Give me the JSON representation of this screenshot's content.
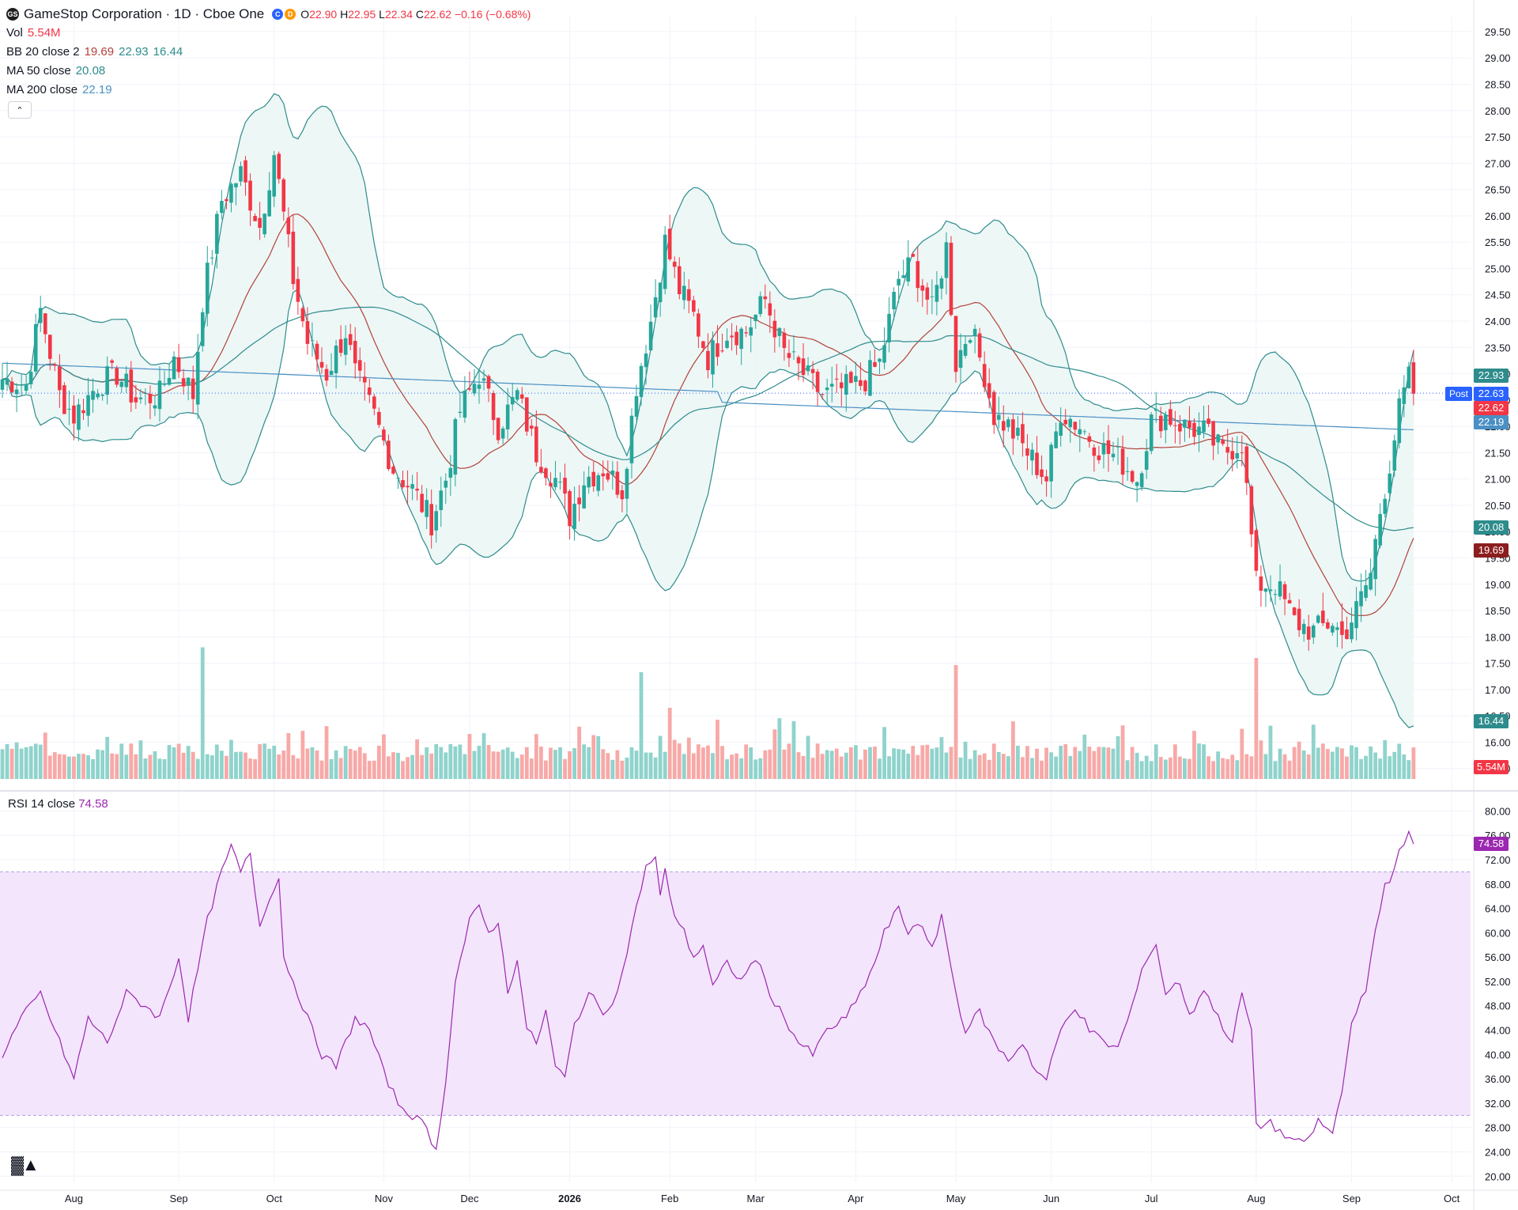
{
  "header": {
    "symbol_logo": "GS",
    "title": "GameStop Corporation · 1D · Cboe One",
    "badges": [
      "C",
      "D"
    ],
    "o_label": "O",
    "o": "22.90",
    "h_label": "H",
    "h": "22.95",
    "l_label": "L",
    "l": "22.34",
    "c_label": "C",
    "c": "22.62",
    "change": "−0.16 (−0.68%)"
  },
  "indicators": {
    "vol_label": "Vol",
    "vol_value": "5.54M",
    "bb_label": "BB 20 close 2",
    "bb_mid": "19.69",
    "bb_upper": "22.93",
    "bb_lower": "16.44",
    "ma50_label": "MA 50 close",
    "ma50_value": "20.08",
    "ma200_label": "MA 200 close",
    "ma200_value": "22.19",
    "collapse_icon": "chevron-up-icon"
  },
  "rsi": {
    "label": "RSI 14 close",
    "value": "74.58"
  },
  "price_axis_labels": [
    "29.50",
    "29.00",
    "28.50",
    "28.00",
    "27.50",
    "27.00",
    "26.50",
    "26.00",
    "25.50",
    "25.00",
    "24.50",
    "24.00",
    "23.50",
    "23.00",
    "22.50",
    "22.00",
    "21.50",
    "21.00",
    "20.50",
    "20.00",
    "19.50",
    "19.00",
    "18.50",
    "18.00",
    "17.50",
    "17.00",
    "16.50",
    "16.00",
    "15.50"
  ],
  "rsi_axis_labels": [
    "80.00",
    "76.00",
    "72.00",
    "68.00",
    "64.00",
    "60.00",
    "56.00",
    "52.00",
    "48.00",
    "44.00",
    "40.00",
    "36.00",
    "32.00",
    "28.00",
    "24.00",
    "20.00"
  ],
  "time_axis_labels": [
    "Aug",
    "Sep",
    "Oct",
    "Nov",
    "Dec",
    "2026",
    "Feb",
    "Mar",
    "Apr",
    "May",
    "Jun",
    "Jul",
    "Aug",
    "Sep",
    "Oct"
  ],
  "axis_tags": {
    "bb_upper": "22.93",
    "last_price": "22.63",
    "close": "22.62",
    "ma200": "22.19",
    "ma50": "20.08",
    "bb_mid": "19.69",
    "bb_lower": "16.44",
    "volume": "5.54M",
    "rsi": "74.58",
    "post_label": "Post"
  },
  "colors": {
    "up": "#26a69a",
    "down": "#f23645",
    "bb_band": "#2e8c8c",
    "bb_fill": "#e8f5f4",
    "bb_mid": "#b2423a",
    "ma50": "#2e8c8c",
    "ma200": "#4a90c4",
    "rsi_line": "#9c27b0",
    "rsi_band": "#f3e5fc",
    "vol_up": "#8fd3cc",
    "vol_down": "#f7a9a7",
    "last_price_line": "#2962ff"
  },
  "chart_data": {
    "type": "candlestick",
    "title": "GameStop Corporation · 1D · Cboe One",
    "y_range": [
      15.3,
      29.8
    ],
    "rsi_range": [
      19,
      82
    ],
    "rsi_band": [
      30,
      70
    ],
    "last_close": 22.62,
    "months": [
      {
        "label": "Aug",
        "day": 15
      },
      {
        "label": "Sep",
        "day": 37
      },
      {
        "label": "Oct",
        "day": 57
      },
      {
        "label": "Nov",
        "day": 80
      },
      {
        "label": "Dec",
        "day": 98
      },
      {
        "label": "2026",
        "day": 119
      },
      {
        "label": "Feb",
        "day": 140
      },
      {
        "label": "Mar",
        "day": 158
      },
      {
        "label": "Apr",
        "day": 179
      },
      {
        "label": "May",
        "day": 200
      },
      {
        "label": "Jun",
        "day": 220
      },
      {
        "label": "Jul",
        "day": 241
      },
      {
        "label": "Aug",
        "day": 263
      },
      {
        "label": "Sep",
        "day": 283
      },
      {
        "label": "Oct",
        "day": 304
      }
    ],
    "close_anchors": [
      [
        0,
        22.9
      ],
      [
        5,
        22.8
      ],
      [
        8,
        24.2
      ],
      [
        12,
        22.6
      ],
      [
        15,
        22.2
      ],
      [
        20,
        22.8
      ],
      [
        24,
        23.0
      ],
      [
        28,
        22.5
      ],
      [
        33,
        22.6
      ],
      [
        36,
        23.3
      ],
      [
        40,
        22.6
      ],
      [
        42,
        24.4
      ],
      [
        46,
        26.3
      ],
      [
        50,
        26.8
      ],
      [
        54,
        25.8
      ],
      [
        57,
        27.2
      ],
      [
        59,
        26.0
      ],
      [
        61,
        24.8
      ],
      [
        64,
        23.6
      ],
      [
        68,
        23.0
      ],
      [
        72,
        23.8
      ],
      [
        74,
        23.0
      ],
      [
        78,
        22.2
      ],
      [
        82,
        21.2
      ],
      [
        86,
        20.8
      ],
      [
        90,
        20.2
      ],
      [
        93,
        21.0
      ],
      [
        96,
        22.3
      ],
      [
        100,
        23.0
      ],
      [
        104,
        22.0
      ],
      [
        108,
        22.6
      ],
      [
        112,
        21.5
      ],
      [
        116,
        21.0
      ],
      [
        119,
        20.3
      ],
      [
        122,
        21.0
      ],
      [
        126,
        21.2
      ],
      [
        130,
        20.8
      ],
      [
        133,
        22.8
      ],
      [
        136,
        24.0
      ],
      [
        139,
        25.5
      ],
      [
        142,
        24.6
      ],
      [
        145,
        24.1
      ],
      [
        148,
        23.3
      ],
      [
        152,
        23.8
      ],
      [
        156,
        23.8
      ],
      [
        160,
        24.4
      ],
      [
        164,
        23.4
      ],
      [
        168,
        23.0
      ],
      [
        172,
        22.6
      ],
      [
        176,
        22.7
      ],
      [
        180,
        22.8
      ],
      [
        184,
        23.2
      ],
      [
        188,
        24.8
      ],
      [
        191,
        25.1
      ],
      [
        195,
        24.2
      ],
      [
        198,
        25.4
      ],
      [
        200,
        23.2
      ],
      [
        203,
        23.9
      ],
      [
        206,
        23.0
      ],
      [
        208,
        22.2
      ],
      [
        211,
        22.0
      ],
      [
        215,
        21.5
      ],
      [
        219,
        21.0
      ],
      [
        222,
        22.3
      ],
      [
        226,
        22.0
      ],
      [
        230,
        21.6
      ],
      [
        234,
        21.4
      ],
      [
        238,
        21.0
      ],
      [
        241,
        22.1
      ],
      [
        244,
        22.2
      ],
      [
        248,
        22.0
      ],
      [
        252,
        21.9
      ],
      [
        256,
        21.5
      ],
      [
        260,
        21.7
      ],
      [
        263,
        19.0
      ],
      [
        267,
        19.0
      ],
      [
        271,
        18.3
      ],
      [
        275,
        18.1
      ],
      [
        279,
        18.3
      ],
      [
        281,
        18.0
      ],
      [
        284,
        18.5
      ],
      [
        287,
        19.2
      ],
      [
        289,
        20.4
      ],
      [
        291,
        21.3
      ],
      [
        293,
        22.3
      ],
      [
        295,
        22.9
      ],
      [
        296,
        22.62
      ]
    ],
    "high_vol_days": [
      {
        "day": 42,
        "vol": 37
      },
      {
        "day": 134,
        "vol": 30
      },
      {
        "day": 140,
        "vol": 20
      },
      {
        "day": 200,
        "vol": 32
      },
      {
        "day": 263,
        "vol": 34
      }
    ],
    "rsi_anchors": [
      [
        0,
        40
      ],
      [
        4,
        46
      ],
      [
        8,
        50
      ],
      [
        12,
        42
      ],
      [
        15,
        36
      ],
      [
        18,
        46
      ],
      [
        22,
        42
      ],
      [
        26,
        50
      ],
      [
        30,
        48
      ],
      [
        33,
        46
      ],
      [
        37,
        56
      ],
      [
        39,
        46
      ],
      [
        43,
        62
      ],
      [
        46,
        70
      ],
      [
        48,
        74
      ],
      [
        50,
        70
      ],
      [
        52,
        73
      ],
      [
        54,
        61
      ],
      [
        56,
        66
      ],
      [
        58,
        69
      ],
      [
        59,
        56
      ],
      [
        61,
        52
      ],
      [
        64,
        46
      ],
      [
        67,
        40
      ],
      [
        70,
        38
      ],
      [
        72,
        42
      ],
      [
        74,
        46
      ],
      [
        77,
        44
      ],
      [
        80,
        37
      ],
      [
        83,
        32
      ],
      [
        86,
        30
      ],
      [
        89,
        28
      ],
      [
        91,
        24
      ],
      [
        93,
        36
      ],
      [
        95,
        52
      ],
      [
        98,
        62
      ],
      [
        100,
        64
      ],
      [
        102,
        60
      ],
      [
        104,
        62
      ],
      [
        106,
        50
      ],
      [
        108,
        56
      ],
      [
        110,
        44
      ],
      [
        112,
        42
      ],
      [
        114,
        47
      ],
      [
        116,
        38
      ],
      [
        118,
        36
      ],
      [
        120,
        45
      ],
      [
        123,
        50
      ],
      [
        126,
        47
      ],
      [
        129,
        50
      ],
      [
        131,
        57
      ],
      [
        133,
        64
      ],
      [
        135,
        71
      ],
      [
        137,
        72
      ],
      [
        138,
        66
      ],
      [
        139,
        70
      ],
      [
        141,
        63
      ],
      [
        143,
        60
      ],
      [
        145,
        56
      ],
      [
        147,
        58
      ],
      [
        149,
        51
      ],
      [
        152,
        55
      ],
      [
        155,
        52
      ],
      [
        158,
        56
      ],
      [
        161,
        50
      ],
      [
        164,
        46
      ],
      [
        167,
        42
      ],
      [
        170,
        40
      ],
      [
        173,
        44
      ],
      [
        177,
        46
      ],
      [
        180,
        50
      ],
      [
        183,
        55
      ],
      [
        185,
        60
      ],
      [
        188,
        64
      ],
      [
        190,
        60
      ],
      [
        192,
        62
      ],
      [
        195,
        57
      ],
      [
        197,
        63
      ],
      [
        200,
        50
      ],
      [
        202,
        44
      ],
      [
        205,
        47
      ],
      [
        208,
        42
      ],
      [
        211,
        39
      ],
      [
        214,
        42
      ],
      [
        217,
        37
      ],
      [
        219,
        36
      ],
      [
        222,
        44
      ],
      [
        225,
        48
      ],
      [
        228,
        44
      ],
      [
        231,
        42
      ],
      [
        234,
        41
      ],
      [
        237,
        48
      ],
      [
        240,
        56
      ],
      [
        242,
        58
      ],
      [
        244,
        50
      ],
      [
        247,
        52
      ],
      [
        249,
        46
      ],
      [
        252,
        51
      ],
      [
        255,
        46
      ],
      [
        258,
        42
      ],
      [
        260,
        50
      ],
      [
        262,
        44
      ],
      [
        263,
        28
      ],
      [
        266,
        29
      ],
      [
        268,
        27
      ],
      [
        271,
        26
      ],
      [
        273,
        25
      ],
      [
        276,
        29
      ],
      [
        279,
        27
      ],
      [
        281,
        34
      ],
      [
        283,
        45
      ],
      [
        285,
        50
      ],
      [
        286,
        50
      ],
      [
        288,
        60
      ],
      [
        290,
        68
      ],
      [
        292,
        70
      ],
      [
        293,
        74
      ],
      [
        295,
        76
      ],
      [
        296,
        74.58
      ]
    ]
  }
}
